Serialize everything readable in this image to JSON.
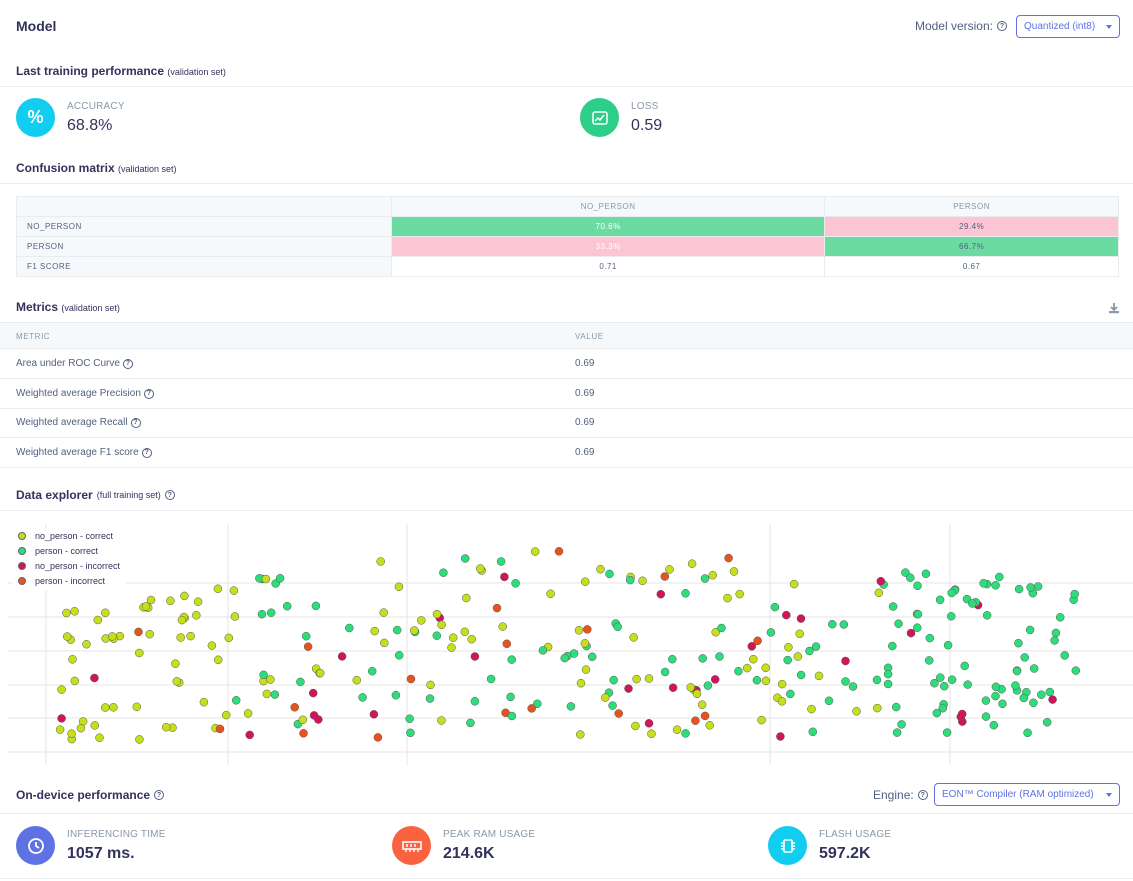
{
  "header": {
    "title": "Model",
    "model_version_label": "Model version:",
    "model_version_value": "Quantized (int8)"
  },
  "training": {
    "title": "Last training performance",
    "subtitle": "(validation set)",
    "accuracy_label": "ACCURACY",
    "accuracy_value": "68.8%",
    "loss_label": "LOSS",
    "loss_value": "0.59",
    "accuracy_icon_color": "#11cdef",
    "loss_icon_color": "#2dce89"
  },
  "confusion": {
    "title": "Confusion matrix",
    "subtitle": "(validation set)",
    "columns": [
      "NO_PERSON",
      "PERSON"
    ],
    "rows": [
      {
        "label": "NO_PERSON",
        "cells": [
          "70.6%",
          "29.4%"
        ]
      },
      {
        "label": "PERSON",
        "cells": [
          "33.3%",
          "66.7%"
        ]
      },
      {
        "label": "F1 SCORE",
        "cells": [
          "0.71",
          "0.67"
        ]
      }
    ],
    "good_color": "#6cdba2",
    "bad_color": "#fcc5d3"
  },
  "metrics": {
    "title": "Metrics",
    "subtitle": "(validation set)",
    "col_metric": "METRIC",
    "col_value": "VALUE",
    "rows": [
      {
        "name": "Area under ROC Curve",
        "value": "0.69"
      },
      {
        "name": "Weighted average Precision",
        "value": "0.69"
      },
      {
        "name": "Weighted average Recall",
        "value": "0.69"
      },
      {
        "name": "Weighted average F1 score",
        "value": "0.69"
      }
    ]
  },
  "explorer": {
    "title": "Data explorer",
    "subtitle": "(full training set)",
    "legend": [
      {
        "label": "no_person - correct",
        "color": "#c6df1a"
      },
      {
        "label": "person - correct",
        "color": "#2ddc7a"
      },
      {
        "label": "no_person - incorrect",
        "color": "#d3145a"
      },
      {
        "label": "person - incorrect",
        "color": "#e7531c"
      }
    ]
  },
  "device": {
    "title": "On-device performance",
    "engine_label": "Engine:",
    "engine_value": "EON™ Compiler (RAM optimized)",
    "inferencing_label": "INFERENCING TIME",
    "inferencing_value": "1057 ms.",
    "ram_label": "PEAK RAM USAGE",
    "ram_value": "214.6K",
    "flash_label": "FLASH USAGE",
    "flash_value": "597.2K",
    "inferencing_icon_color": "#5e72e4",
    "ram_icon_color": "#fb6340",
    "flash_icon_color": "#11cdef"
  }
}
